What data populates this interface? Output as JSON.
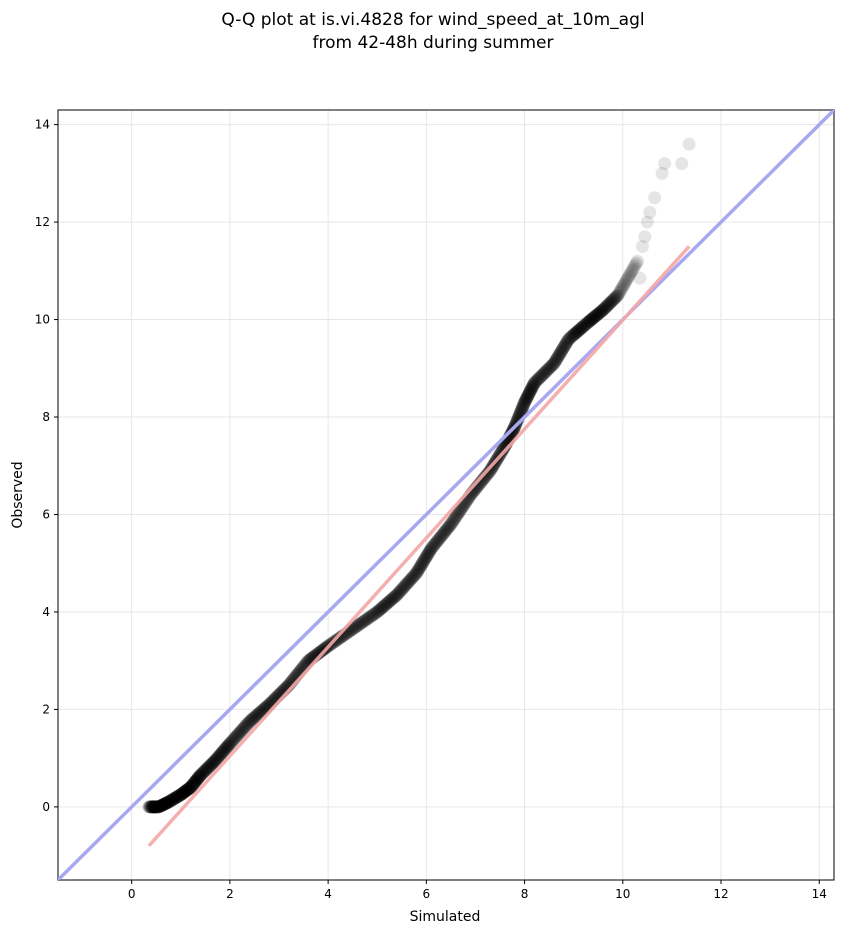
{
  "chart_data": {
    "type": "scatter",
    "title_lines": [
      "Q-Q plot at is.vi.4828 for wind_speed_at_10m_agl",
      "from 42-48h during summer"
    ],
    "xlabel": "Simulated",
    "ylabel": "Observed",
    "xlim": [
      -1.5,
      14.3
    ],
    "ylim": [
      -1.5,
      14.3
    ],
    "xticks": [
      0,
      2,
      4,
      6,
      8,
      10,
      12,
      14
    ],
    "yticks": [
      0,
      2,
      4,
      6,
      8,
      10,
      12,
      14
    ],
    "grid": true,
    "identity_line": {
      "color": "#a8a8f0",
      "from": [
        -1.5,
        -1.5
      ],
      "to": [
        14.3,
        14.3
      ]
    },
    "fit_line": {
      "color": "#f4a6a6",
      "from": [
        0.35,
        -0.8
      ],
      "to": [
        11.35,
        11.5
      ]
    },
    "point_color": "#000000",
    "quantile_curve": [
      [
        0.35,
        0.0
      ],
      [
        0.55,
        0.0
      ],
      [
        0.75,
        0.1
      ],
      [
        1.0,
        0.25
      ],
      [
        1.2,
        0.4
      ],
      [
        1.4,
        0.65
      ],
      [
        1.7,
        0.95
      ],
      [
        2.0,
        1.3
      ],
      [
        2.4,
        1.75
      ],
      [
        2.8,
        2.1
      ],
      [
        3.2,
        2.5
      ],
      [
        3.6,
        3.0
      ],
      [
        4.0,
        3.3
      ],
      [
        4.5,
        3.65
      ],
      [
        5.0,
        4.0
      ],
      [
        5.4,
        4.35
      ],
      [
        5.8,
        4.8
      ],
      [
        6.1,
        5.3
      ],
      [
        6.5,
        5.8
      ],
      [
        6.9,
        6.4
      ],
      [
        7.3,
        6.9
      ],
      [
        7.6,
        7.4
      ],
      [
        7.8,
        7.8
      ],
      [
        8.0,
        8.3
      ],
      [
        8.2,
        8.7
      ],
      [
        8.6,
        9.1
      ],
      [
        8.9,
        9.6
      ],
      [
        9.3,
        9.95
      ],
      [
        9.6,
        10.2
      ],
      [
        9.9,
        10.5
      ],
      [
        10.3,
        11.2
      ]
    ],
    "tail_points": [
      [
        10.35,
        10.85
      ],
      [
        10.4,
        11.5
      ],
      [
        10.45,
        11.7
      ],
      [
        10.5,
        12.0
      ],
      [
        10.55,
        12.2
      ],
      [
        10.65,
        12.5
      ],
      [
        10.8,
        13.0
      ],
      [
        10.85,
        13.2
      ],
      [
        11.2,
        13.2
      ],
      [
        11.35,
        13.6
      ]
    ]
  }
}
